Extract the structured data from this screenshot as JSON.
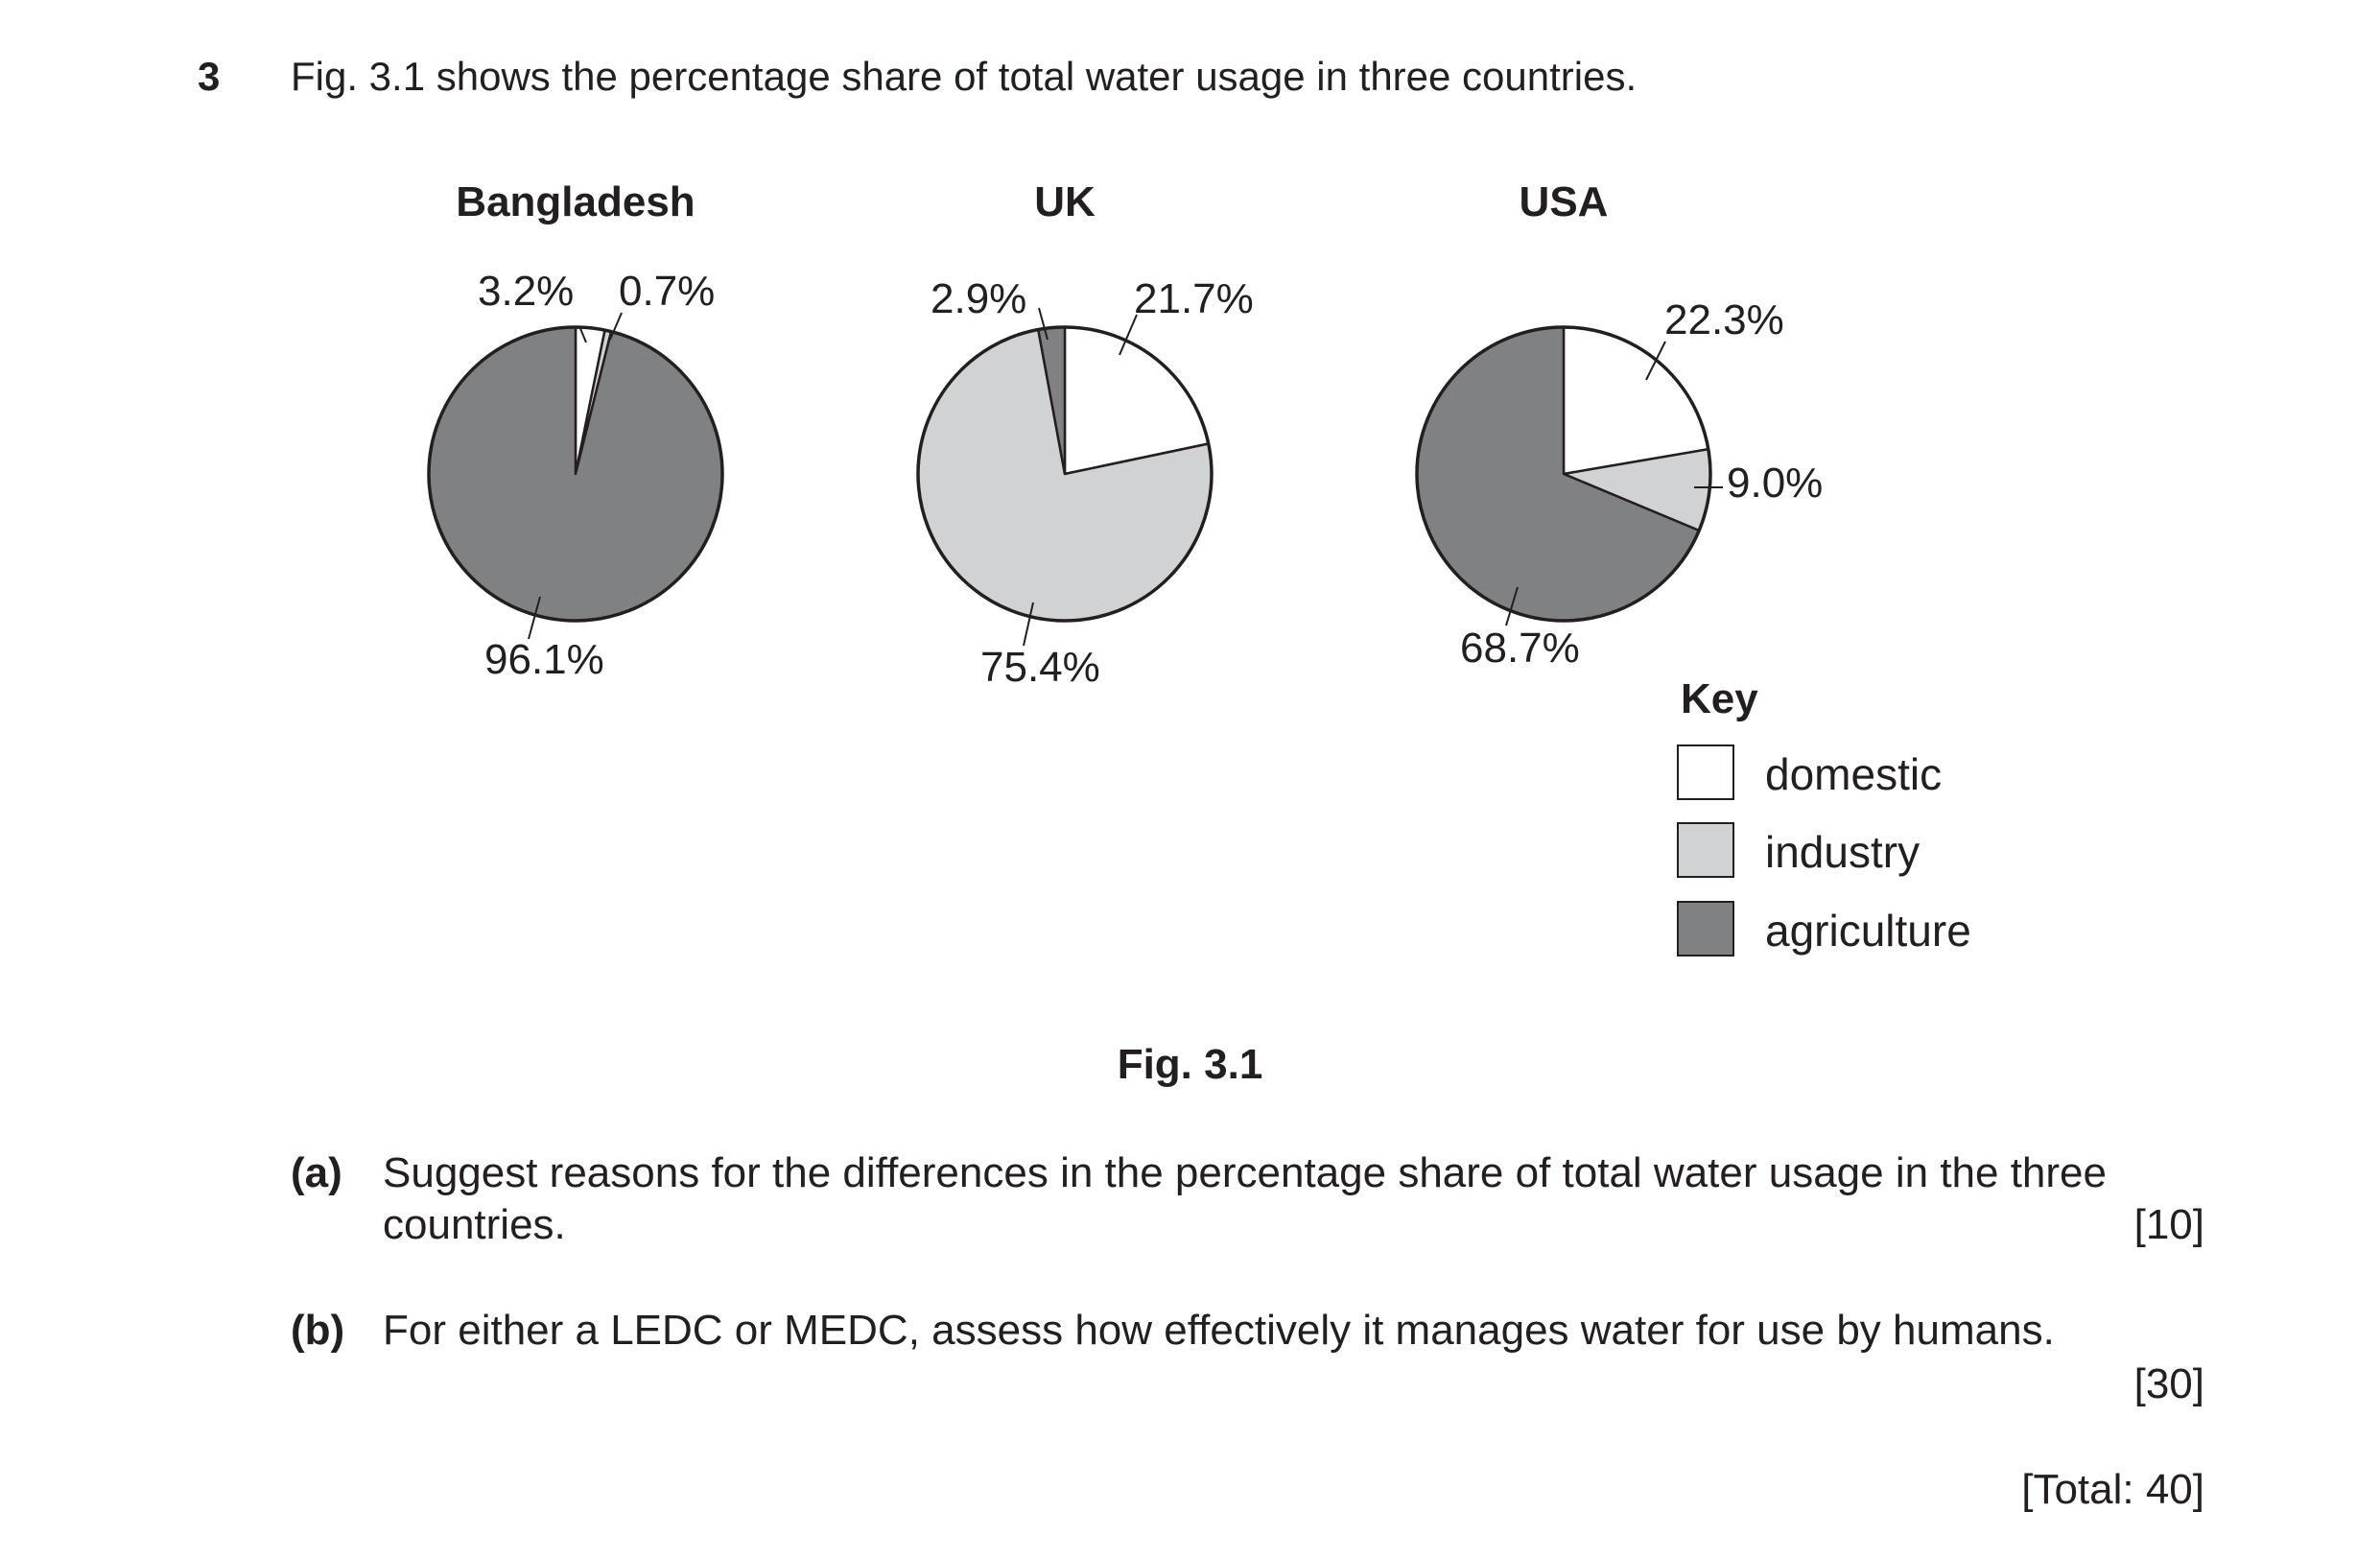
{
  "question": {
    "number": "3",
    "intro": "Fig. 3.1 shows the percentage share of total water usage in three countries."
  },
  "chart_data": [
    {
      "type": "pie",
      "title": "Bangladesh",
      "categories": [
        "domestic",
        "industry",
        "agriculture"
      ],
      "values": [
        3.2,
        0.7,
        96.1
      ],
      "labels": [
        "3.2%",
        "0.7%",
        "96.1%"
      ]
    },
    {
      "type": "pie",
      "title": "UK",
      "categories": [
        "domestic",
        "industry",
        "agriculture"
      ],
      "values": [
        21.7,
        75.4,
        2.9
      ],
      "labels": [
        "21.7%",
        "75.4%",
        "2.9%"
      ]
    },
    {
      "type": "pie",
      "title": "USA",
      "categories": [
        "domestic",
        "industry",
        "agriculture"
      ],
      "values": [
        22.3,
        9.0,
        68.7
      ],
      "labels": [
        "22.3%",
        "9.0%",
        "68.7%"
      ]
    }
  ],
  "key": {
    "title": "Key",
    "items": [
      {
        "label": "domestic",
        "color": "#ffffff"
      },
      {
        "label": "industry",
        "color": "#d1d2d4"
      },
      {
        "label": "agriculture",
        "color": "#808183"
      }
    ]
  },
  "figure_caption": "Fig. 3.1",
  "parts": [
    {
      "label": "(a)",
      "line1": "Suggest reasons for the differences in the percentage share of total water usage in the three",
      "line2": "countries.",
      "marks": "[10]"
    },
    {
      "label": "(b)",
      "line1": "For either a LEDC or MEDC, assess how effectively it manages water for use by humans.",
      "marks": "[30]"
    }
  ],
  "total": "[Total: 40]"
}
